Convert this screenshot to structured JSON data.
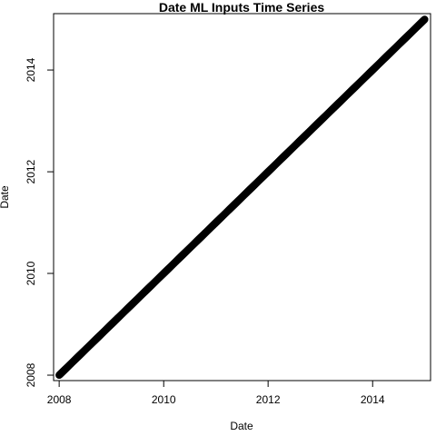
{
  "chart_data": {
    "type": "scatter",
    "title": "Date ML Inputs Time Series",
    "xlabel": "Date",
    "ylabel": "Date",
    "x_axis_type": "date",
    "y_axis_type": "date",
    "xlim": [
      "2007-11-23",
      "2015-02-10"
    ],
    "ylim": [
      "2007-11-23",
      "2015-02-10"
    ],
    "xticks": [
      "2008",
      "2010",
      "2012",
      "2014"
    ],
    "yticks": [
      "2008",
      "2010",
      "2012",
      "2014"
    ],
    "grid": false,
    "legend": "none",
    "series": [
      {
        "x_range": [
          "2008-01-01",
          "2014-12-31"
        ],
        "y_range": [
          "2008-01-01",
          "2014-12-31"
        ],
        "sampling": "daily",
        "relation": "y = x",
        "color": "#000000",
        "marker": "circle"
      }
    ]
  }
}
